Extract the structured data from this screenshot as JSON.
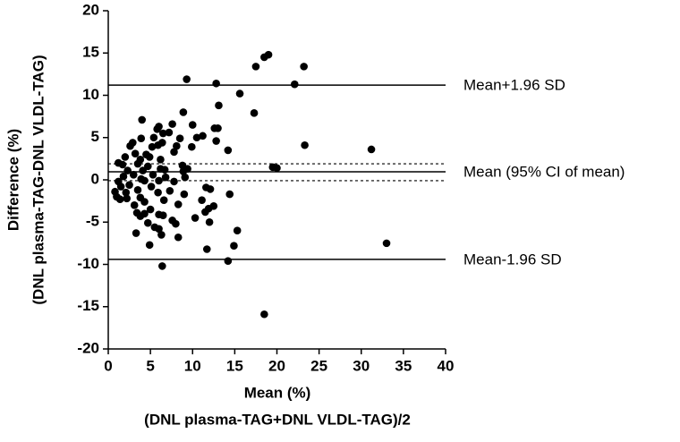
{
  "chart_data": {
    "type": "scatter",
    "xlabel": [
      "Mean (%)",
      "(DNL plasma-TAG+DNL VLDL-TAG)/2"
    ],
    "ylabel": [
      "Difference (%)",
      "(DNL plasma-TAG-DNL VLDL-TAG)"
    ],
    "xlim": [
      0,
      40
    ],
    "ylim": [
      -20,
      20
    ],
    "xticks": [
      0,
      5,
      10,
      15,
      20,
      25,
      30,
      35,
      40
    ],
    "yticks": [
      -20,
      -15,
      -10,
      -5,
      0,
      5,
      10,
      15,
      20
    ],
    "color": "#000000",
    "reference_lines": [
      {
        "value": 11.2,
        "label": "Mean+1.96 SD"
      },
      {
        "value": 0.95,
        "label": "Mean (95% CI of mean)"
      },
      {
        "value": -9.4,
        "label": "Mean-1.96 SD"
      }
    ],
    "mean_ci": [
      -0.1,
      1.9
    ],
    "x": [
      19.0,
      18.5,
      17.5,
      23.2,
      9.3,
      12.8,
      22.1,
      15.6,
      13.1,
      17.3,
      8.9,
      4.0,
      7.6,
      10.0,
      6.0,
      12.6,
      13.0,
      5.8,
      7.2,
      6.5,
      11.2,
      10.5,
      3.9,
      5.4,
      8.5,
      12.8,
      2.9,
      6.4,
      5.9,
      23.3,
      2.6,
      5.2,
      8.1,
      9.9,
      31.2,
      14.2,
      3.2,
      4.5,
      7.8,
      2.0,
      4.9,
      3.8,
      6.2,
      1.2,
      1.7,
      3.5,
      4.7,
      8.8,
      6.2,
      9.4,
      19.5,
      20.0,
      2.3,
      4.1,
      6.7,
      8.9,
      3.0,
      5.3,
      1.8,
      3.9,
      6.8,
      9.1,
      1.2,
      4.3,
      6.0,
      7.8,
      2.5,
      1.5,
      5.1,
      11.6,
      12.1,
      3.5,
      7.3,
      2.1,
      0.8,
      5.9,
      9.0,
      14.4,
      1.0,
      3.8,
      1.4,
      2.2,
      6.6,
      11.1,
      4.3,
      8.3,
      3.1,
      12.5,
      5.0,
      11.9,
      11.5,
      3.4,
      4.3,
      6.0,
      6.5,
      3.8,
      10.3,
      7.6,
      4.7,
      12.0,
      8.0,
      5.5,
      6.0,
      15.3,
      3.3,
      6.3,
      8.3,
      4.9,
      14.9,
      33.0,
      11.7,
      14.2,
      6.4,
      18.5
    ],
    "y": [
      14.8,
      14.5,
      13.4,
      13.4,
      11.9,
      11.4,
      11.3,
      10.2,
      8.8,
      7.9,
      8.0,
      7.1,
      6.6,
      6.5,
      6.3,
      6.1,
      6.1,
      6.0,
      5.6,
      5.5,
      5.2,
      5.0,
      4.9,
      5.0,
      4.9,
      4.6,
      4.4,
      4.4,
      4.1,
      4.1,
      4.0,
      3.9,
      4.0,
      3.9,
      3.6,
      3.5,
      3.1,
      3.0,
      3.3,
      2.7,
      2.7,
      2.4,
      2.4,
      2.0,
      1.8,
      1.9,
      1.6,
      1.7,
      1.3,
      1.3,
      1.5,
      1.4,
      1.1,
      1.1,
      1.2,
      1.0,
      0.6,
      0.6,
      0.4,
      0.1,
      0.3,
      0.3,
      -0.2,
      -0.1,
      -0.1,
      -0.2,
      -0.6,
      -0.8,
      -0.8,
      -0.9,
      -1.1,
      -1.2,
      -1.3,
      -1.5,
      -1.4,
      -1.5,
      -1.7,
      -1.7,
      -2.0,
      -2.1,
      -2.3,
      -2.2,
      -2.4,
      -2.4,
      -2.6,
      -2.9,
      -3.0,
      -3.1,
      -3.5,
      -3.4,
      -3.8,
      -3.9,
      -4.0,
      -4.1,
      -4.2,
      -4.3,
      -4.5,
      -4.8,
      -5.1,
      -5.0,
      -5.2,
      -5.6,
      -5.8,
      -6.0,
      -6.3,
      -6.5,
      -6.8,
      -7.7,
      -7.8,
      -7.5,
      -8.2,
      -9.6,
      -10.2,
      -15.9
    ]
  }
}
